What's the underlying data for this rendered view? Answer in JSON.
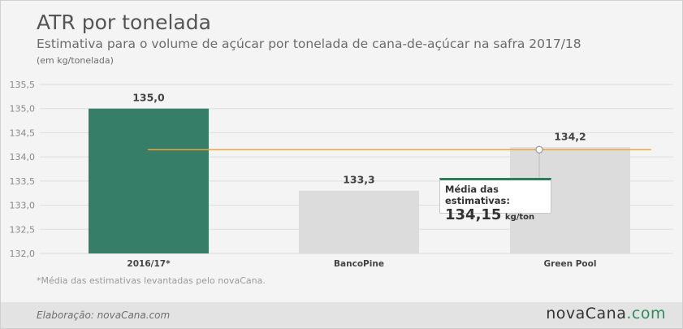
{
  "header": {
    "title": "ATR por tonelada",
    "subtitle": "Estimativa para o volume de açúcar por tonelada de cana-de-açúcar na safra 2017/18",
    "unit": "(em kg/tonelada)"
  },
  "chart_data": {
    "type": "bar",
    "categories": [
      "2016/17*",
      "BancoPine",
      "Green Pool"
    ],
    "values": [
      135.0,
      133.3,
      134.2
    ],
    "value_labels": [
      "135,0",
      "133,3",
      "134,2"
    ],
    "ylim": [
      132.0,
      135.5
    ],
    "yticks": [
      "132,0",
      "132,5",
      "133,0",
      "133,5",
      "134,0",
      "134,5",
      "135,0",
      "135,5"
    ],
    "grid": true,
    "colors": {
      "highlight": "#367e68",
      "default": "#dcdcdc",
      "average_line": "#f0a63c"
    },
    "average_line": {
      "value": 134.15
    }
  },
  "callout": {
    "label": "Média das estimativas:",
    "value": "134,15",
    "unit": "kg/ton"
  },
  "note": "*Média das estimativas levantadas pelo novaCana.",
  "footer": {
    "credit": "Elaboração: novaCana.com",
    "brand_main": "novaCana",
    "brand_dot": ".",
    "brand_suffix": "com"
  }
}
